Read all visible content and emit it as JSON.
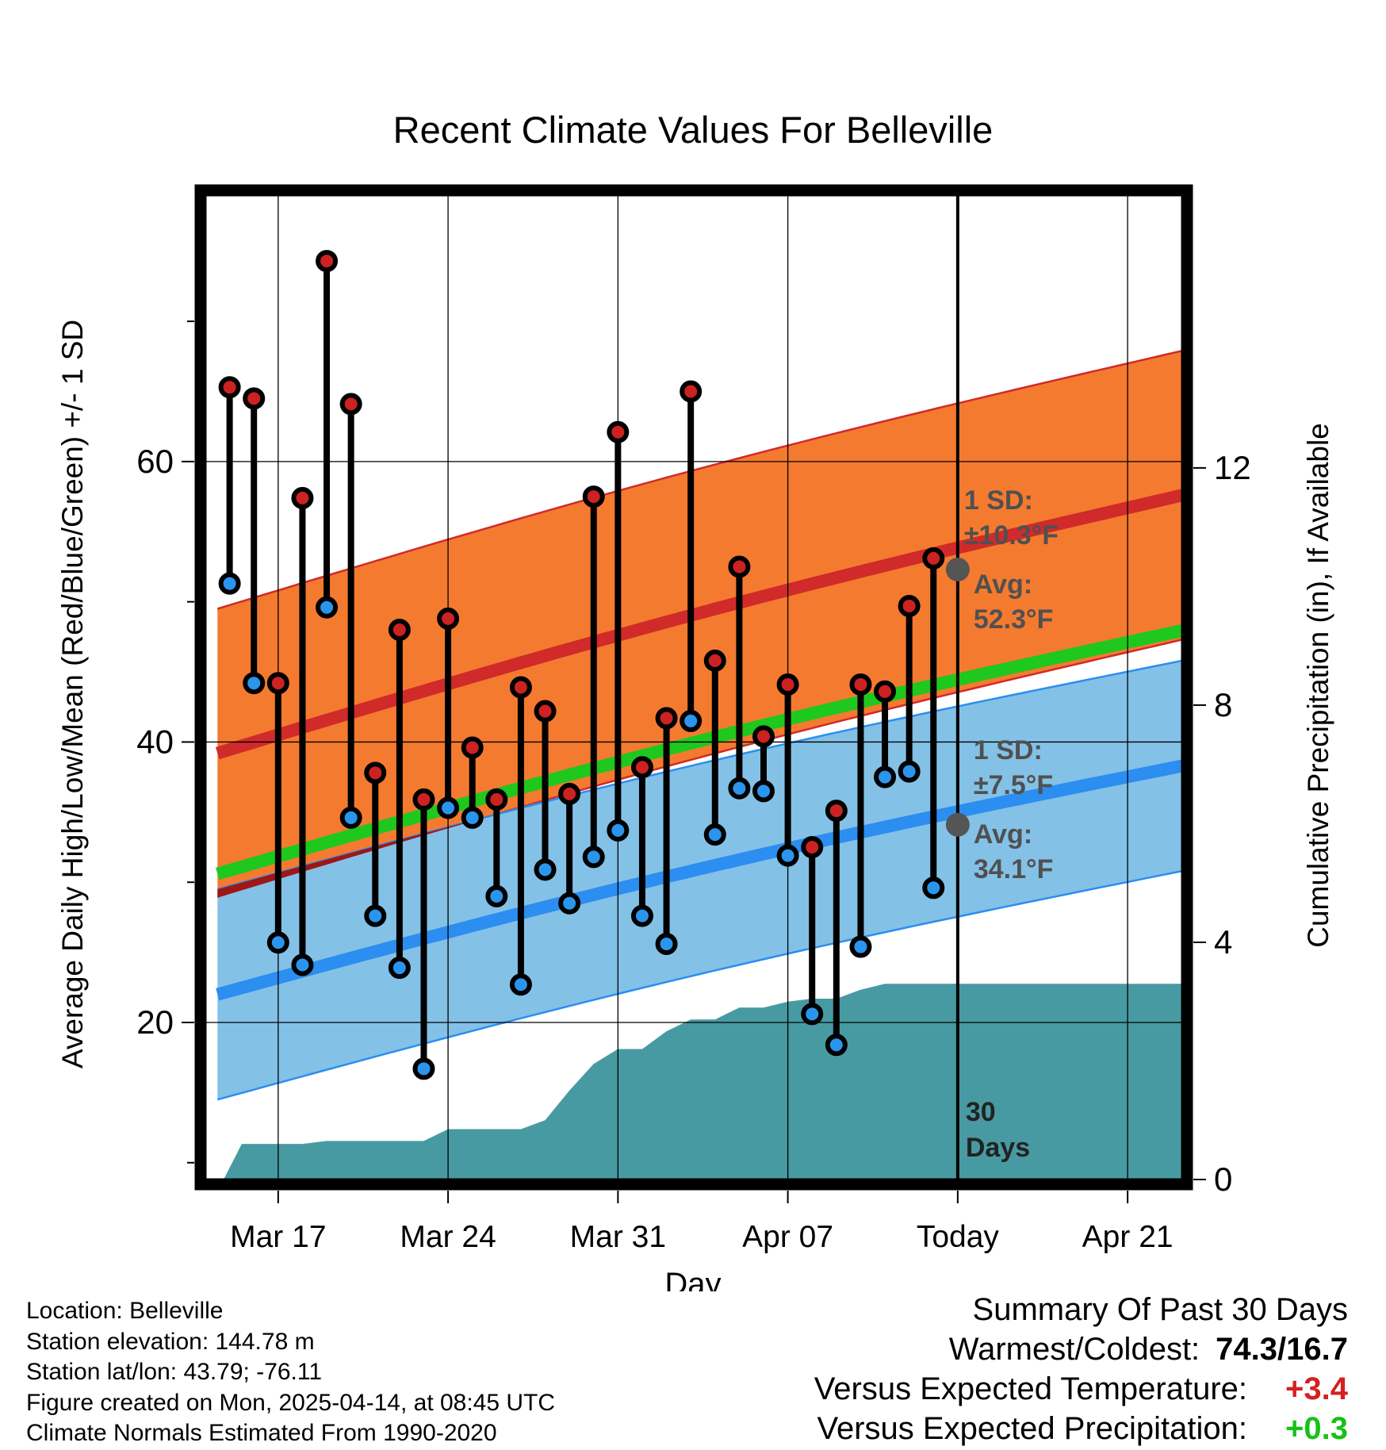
{
  "chart_data": {
    "type": "climate-range",
    "title": "Recent Climate Values For Belleville",
    "xlabel": "Day",
    "ylabel_left": "Average Daily High/Low/Mean (Red/Blue/Green) +/- 1 SD",
    "ylabel_right": "Cumulative Precipitation (in), If Available",
    "x_ticks": [
      {
        "day": 3,
        "label": "Mar 17"
      },
      {
        "day": 10,
        "label": "Mar 24"
      },
      {
        "day": 17,
        "label": "Mar 31"
      },
      {
        "day": 24,
        "label": "Apr 07"
      },
      {
        "day": 31,
        "label": "Today"
      },
      {
        "day": 38,
        "label": "Apr 21"
      }
    ],
    "x_range": [
      0,
      40.25
    ],
    "y_left": {
      "range": [
        8.8,
        79
      ],
      "ticks": [
        20,
        40,
        60
      ],
      "minor": [
        10,
        30,
        50,
        70
      ]
    },
    "y_right": {
      "range": [
        0,
        16.6
      ],
      "ticks": [
        0,
        4,
        8,
        12
      ]
    },
    "today_day": 31,
    "today_label_line1": "30",
    "today_label_line2": "Days",
    "normals": {
      "start_day": 0.5,
      "end_day": 40.25,
      "high_avg": [
        39.2,
        57.6
      ],
      "high_sd": 10.3,
      "low_avg": [
        22.0,
        38.3
      ],
      "low_sd": 7.5
    },
    "annotations": {
      "high": {
        "sd_label": "1 SD:",
        "sd_value": "±10.3°F",
        "avg_label": "Avg:",
        "avg_value": "52.3°F",
        "avg": 52.3
      },
      "low": {
        "sd_label": "1 SD:",
        "sd_value": "±7.5°F",
        "avg_label": "Avg:",
        "avg_value": "34.1°F",
        "avg": 34.1
      }
    },
    "series": [
      {
        "name": "High",
        "values": [
          65.3,
          64.5,
          44.2,
          57.4,
          74.3,
          64.1,
          37.8,
          48.0,
          35.9,
          48.8,
          39.6,
          35.9,
          43.9,
          42.2,
          36.3,
          57.5,
          62.1,
          38.2,
          41.7,
          65.0,
          45.8,
          52.5,
          40.4,
          44.1,
          32.5,
          35.1,
          44.1,
          43.6,
          49.7,
          53.1
        ]
      },
      {
        "name": "Low",
        "values": [
          51.3,
          44.2,
          25.7,
          24.1,
          49.6,
          34.6,
          27.6,
          23.9,
          16.7,
          35.3,
          34.6,
          29.0,
          22.7,
          30.9,
          28.5,
          31.8,
          33.7,
          27.6,
          25.6,
          41.5,
          33.4,
          36.7,
          36.5,
          31.9,
          20.6,
          18.4,
          25.4,
          37.5,
          37.9,
          29.6
        ]
      },
      {
        "name": "Cumulative Precipitation (in)",
        "points": [
          [
            0.75,
            0
          ],
          [
            1.5,
            0.6
          ],
          [
            4,
            0.6
          ],
          [
            5,
            0.65
          ],
          [
            9,
            0.65
          ],
          [
            10,
            0.85
          ],
          [
            13,
            0.85
          ],
          [
            14,
            1.0
          ],
          [
            15,
            1.5
          ],
          [
            16,
            1.95
          ],
          [
            17,
            2.2
          ],
          [
            18,
            2.2
          ],
          [
            19,
            2.5
          ],
          [
            20,
            2.7
          ],
          [
            21,
            2.7
          ],
          [
            22,
            2.9
          ],
          [
            23,
            2.9
          ],
          [
            24,
            3.0
          ],
          [
            25,
            3.05
          ],
          [
            26,
            3.05
          ],
          [
            27,
            3.2
          ],
          [
            28,
            3.3
          ],
          [
            31,
            3.3
          ],
          [
            40.25,
            3.3
          ]
        ]
      }
    ]
  },
  "footer": {
    "location": "Location: Belleville",
    "elevation": "Station elevation: 144.78 m",
    "latlon": "Station lat/lon: 43.79; -76.11",
    "created": "Figure created on Mon, 2025-04-14, at 08:45 UTC",
    "normals": "Climate Normals Estimated From 1990-2020"
  },
  "summary": {
    "heading": "Summary Of Past 30 Days",
    "warm_cold_label": "Warmest/Coldest:",
    "warm_cold_value": "74.3/16.7",
    "temp_label": "Versus Expected Temperature:",
    "temp_value": "+3.4",
    "precip_label": "Versus Expected Precipitation:",
    "precip_value": "+0.3"
  },
  "colors": {
    "high_band": "#f47a30",
    "high_line": "#d12a2a",
    "low_band": "#84c1e6",
    "low_line": "#2b8ef0",
    "mean_line": "#1ec81e",
    "overlap": "#9e1616",
    "precip": "#489aa2",
    "high_dot": "#cc2222",
    "low_dot": "#2b95ee",
    "annotation": "#505050",
    "positive_temp": "#d42020",
    "positive_precip": "#17c117"
  }
}
